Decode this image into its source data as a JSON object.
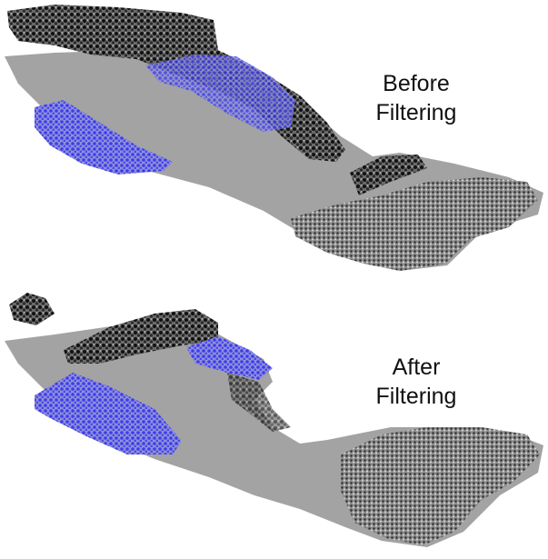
{
  "panels": [
    {
      "line1": "Before",
      "line2": "Filtering"
    },
    {
      "line1": "After",
      "line2": "Filtering"
    }
  ]
}
